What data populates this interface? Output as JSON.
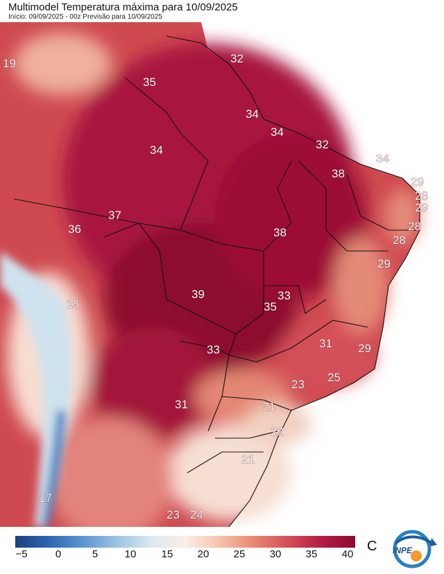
{
  "title": "Multimodel Temperatura máxima para 10/09/2025",
  "subtitle": "Início: 09/09/2025 - 00z  Previsão para 10/09/2025",
  "unit": "C",
  "logo_text": "INPE",
  "colorbar": {
    "ticks": [
      "−5",
      "0",
      "5",
      "10",
      "15",
      "20",
      "25",
      "30",
      "35",
      "40"
    ],
    "colors": [
      "#1d3f80",
      "#2e67b0",
      "#5b96cf",
      "#9cc4e2",
      "#dbe9f1",
      "#fbeee6",
      "#f6c4ad",
      "#e98972",
      "#d4505a",
      "#b51c45",
      "#8f0a2e"
    ]
  },
  "map_labels": [
    {
      "text": "19"
    },
    {
      "text": "32"
    },
    {
      "text": "35"
    },
    {
      "text": "34"
    },
    {
      "text": "34"
    },
    {
      "text": "34"
    },
    {
      "text": "32"
    },
    {
      "text": "34"
    },
    {
      "text": "38"
    },
    {
      "text": "29"
    },
    {
      "text": "28"
    },
    {
      "text": "29"
    },
    {
      "text": "37"
    },
    {
      "text": "36"
    },
    {
      "text": "38"
    },
    {
      "text": "28"
    },
    {
      "text": "28"
    },
    {
      "text": "29"
    },
    {
      "text": "15"
    },
    {
      "text": "39"
    },
    {
      "text": "33"
    },
    {
      "text": "35"
    },
    {
      "text": "31"
    },
    {
      "text": "29"
    },
    {
      "text": "33"
    },
    {
      "text": "23"
    },
    {
      "text": "25"
    },
    {
      "text": "31"
    },
    {
      "text": "21"
    },
    {
      "text": "22"
    },
    {
      "text": "21"
    },
    {
      "text": "17"
    },
    {
      "text": "23"
    },
    {
      "text": "24"
    }
  ]
}
